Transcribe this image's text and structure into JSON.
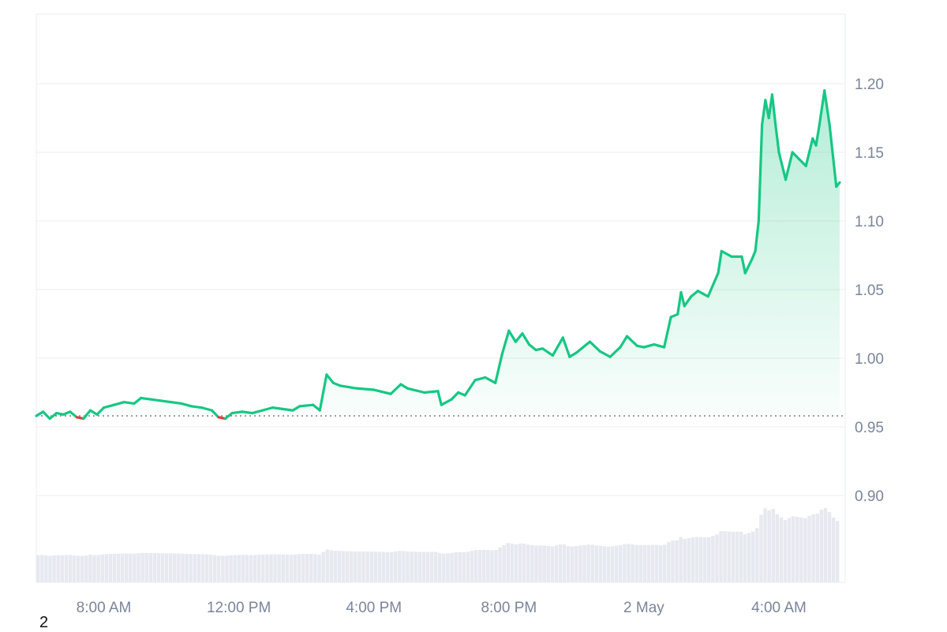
{
  "footnote": "2",
  "chart_data": {
    "type": "line",
    "title": "",
    "xlabel": "",
    "ylabel": "",
    "ylim": [
      0.85,
      1.25
    ],
    "y_ticks": [
      0.9,
      0.95,
      1.0,
      1.05,
      1.1,
      1.15,
      1.2
    ],
    "x_range_hours": [
      6.0,
      29.8
    ],
    "x_ticks": [
      {
        "t": 8,
        "label": "8:00 AM"
      },
      {
        "t": 12,
        "label": "12:00 PM"
      },
      {
        "t": 16,
        "label": "4:00 PM"
      },
      {
        "t": 20,
        "label": "8:00 PM"
      },
      {
        "t": 24,
        "label": "2 May"
      },
      {
        "t": 28,
        "label": "4:00 AM"
      }
    ],
    "baseline": 0.958,
    "grid": true,
    "colors": {
      "up": "#16c784",
      "down": "#ea3943",
      "grid": "#ebedf0",
      "axis": "#7a8599",
      "volume": "#e6e9ef"
    },
    "series": [
      {
        "points": [
          [
            6.0,
            0.958
          ],
          [
            6.2,
            0.961
          ],
          [
            6.4,
            0.956
          ],
          [
            6.6,
            0.96
          ],
          [
            6.8,
            0.959
          ],
          [
            7.0,
            0.961
          ],
          [
            7.2,
            0.957
          ],
          [
            7.4,
            0.956
          ],
          [
            7.6,
            0.962
          ],
          [
            7.8,
            0.959
          ],
          [
            8.0,
            0.964
          ],
          [
            8.3,
            0.966
          ],
          [
            8.6,
            0.968
          ],
          [
            8.9,
            0.967
          ],
          [
            9.1,
            0.971
          ],
          [
            9.4,
            0.97
          ],
          [
            9.7,
            0.969
          ],
          [
            10.0,
            0.968
          ],
          [
            10.3,
            0.967
          ],
          [
            10.6,
            0.965
          ],
          [
            10.9,
            0.964
          ],
          [
            11.2,
            0.962
          ],
          [
            11.4,
            0.957
          ],
          [
            11.6,
            0.956
          ],
          [
            11.8,
            0.96
          ],
          [
            12.1,
            0.961
          ],
          [
            12.4,
            0.96
          ],
          [
            12.7,
            0.962
          ],
          [
            13.0,
            0.964
          ],
          [
            13.3,
            0.963
          ],
          [
            13.6,
            0.962
          ],
          [
            13.8,
            0.965
          ],
          [
            14.2,
            0.966
          ],
          [
            14.4,
            0.962
          ],
          [
            14.6,
            0.988
          ],
          [
            14.8,
            0.982
          ],
          [
            15.0,
            0.98
          ],
          [
            15.5,
            0.978
          ],
          [
            16.0,
            0.977
          ],
          [
            16.5,
            0.974
          ],
          [
            16.8,
            0.981
          ],
          [
            17.0,
            0.978
          ],
          [
            17.5,
            0.975
          ],
          [
            17.9,
            0.976
          ],
          [
            18.0,
            0.966
          ],
          [
            18.3,
            0.97
          ],
          [
            18.5,
            0.975
          ],
          [
            18.7,
            0.973
          ],
          [
            19.0,
            0.984
          ],
          [
            19.3,
            0.986
          ],
          [
            19.6,
            0.982
          ],
          [
            19.8,
            1.003
          ],
          [
            20.0,
            1.02
          ],
          [
            20.2,
            1.012
          ],
          [
            20.4,
            1.018
          ],
          [
            20.6,
            1.01
          ],
          [
            20.8,
            1.006
          ],
          [
            21.0,
            1.007
          ],
          [
            21.3,
            1.002
          ],
          [
            21.6,
            1.015
          ],
          [
            21.8,
            1.001
          ],
          [
            22.0,
            1.004
          ],
          [
            22.4,
            1.012
          ],
          [
            22.7,
            1.005
          ],
          [
            23.0,
            1.001
          ],
          [
            23.3,
            1.008
          ],
          [
            23.5,
            1.016
          ],
          [
            23.8,
            1.009
          ],
          [
            24.0,
            1.008
          ],
          [
            24.3,
            1.01
          ],
          [
            24.6,
            1.008
          ],
          [
            24.8,
            1.03
          ],
          [
            25.0,
            1.032
          ],
          [
            25.1,
            1.048
          ],
          [
            25.2,
            1.038
          ],
          [
            25.4,
            1.045
          ],
          [
            25.6,
            1.049
          ],
          [
            25.9,
            1.045
          ],
          [
            26.2,
            1.062
          ],
          [
            26.3,
            1.078
          ],
          [
            26.6,
            1.074
          ],
          [
            26.9,
            1.074
          ],
          [
            27.0,
            1.062
          ],
          [
            27.2,
            1.072
          ],
          [
            27.3,
            1.078
          ],
          [
            27.4,
            1.1
          ],
          [
            27.5,
            1.17
          ],
          [
            27.6,
            1.188
          ],
          [
            27.7,
            1.175
          ],
          [
            27.8,
            1.192
          ],
          [
            27.9,
            1.17
          ],
          [
            28.0,
            1.15
          ],
          [
            28.2,
            1.13
          ],
          [
            28.4,
            1.15
          ],
          [
            28.6,
            1.145
          ],
          [
            28.8,
            1.14
          ],
          [
            29.0,
            1.16
          ],
          [
            29.1,
            1.155
          ],
          [
            29.2,
            1.17
          ],
          [
            29.35,
            1.195
          ],
          [
            29.5,
            1.17
          ],
          [
            29.7,
            1.125
          ],
          [
            29.8,
            1.128
          ]
        ]
      }
    ]
  }
}
